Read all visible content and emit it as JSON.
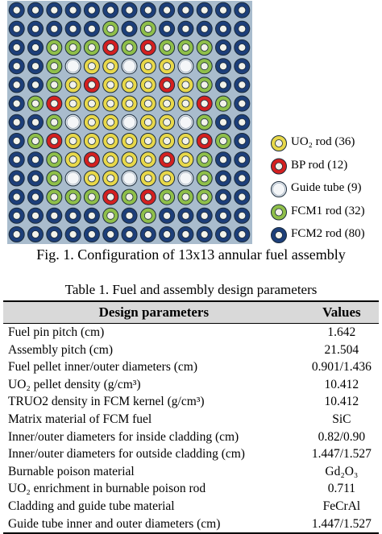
{
  "figure": {
    "legend": [
      "UO₂ rod (36)",
      "BP rod (12)",
      "Guide tube (9)",
      "FCM1 rod (32)",
      "FCM2 rod (80)"
    ],
    "caption": "Fig. 1. Configuration of 13x13 annular fuel assembly"
  },
  "table": {
    "title": "Table 1. Fuel and assembly design parameters",
    "header": [
      "Design parameters",
      "Values"
    ],
    "rows": [
      [
        "Fuel pin pitch (cm)",
        "1.642"
      ],
      [
        "Assembly pitch (cm)",
        "21.504"
      ],
      [
        "Fuel pellet inner/outer diameters (cm)",
        "0.901/1.436"
      ],
      [
        "UO₂ pellet density (g/cm³)",
        "10.412"
      ],
      [
        "TRUO2 density in FCM kernel (g/cm³)",
        "10.412"
      ],
      [
        "Matrix material of FCM fuel",
        "SiC"
      ],
      [
        "Inner/outer diameters for inside cladding (cm)",
        "0.82/0.90"
      ],
      [
        "Inner/outer diameters for outside cladding (cm)",
        "1.447/1.527"
      ],
      [
        "Burnable poison material",
        "Gd₂O₃"
      ],
      [
        "UO₂ enrichment in burnable poison rod",
        "0.711"
      ],
      [
        "Cladding and guide tube material",
        "FeCrAl"
      ],
      [
        "Guide tube inner and outer diameters (cm)",
        "1.447/1.527"
      ]
    ]
  }
}
